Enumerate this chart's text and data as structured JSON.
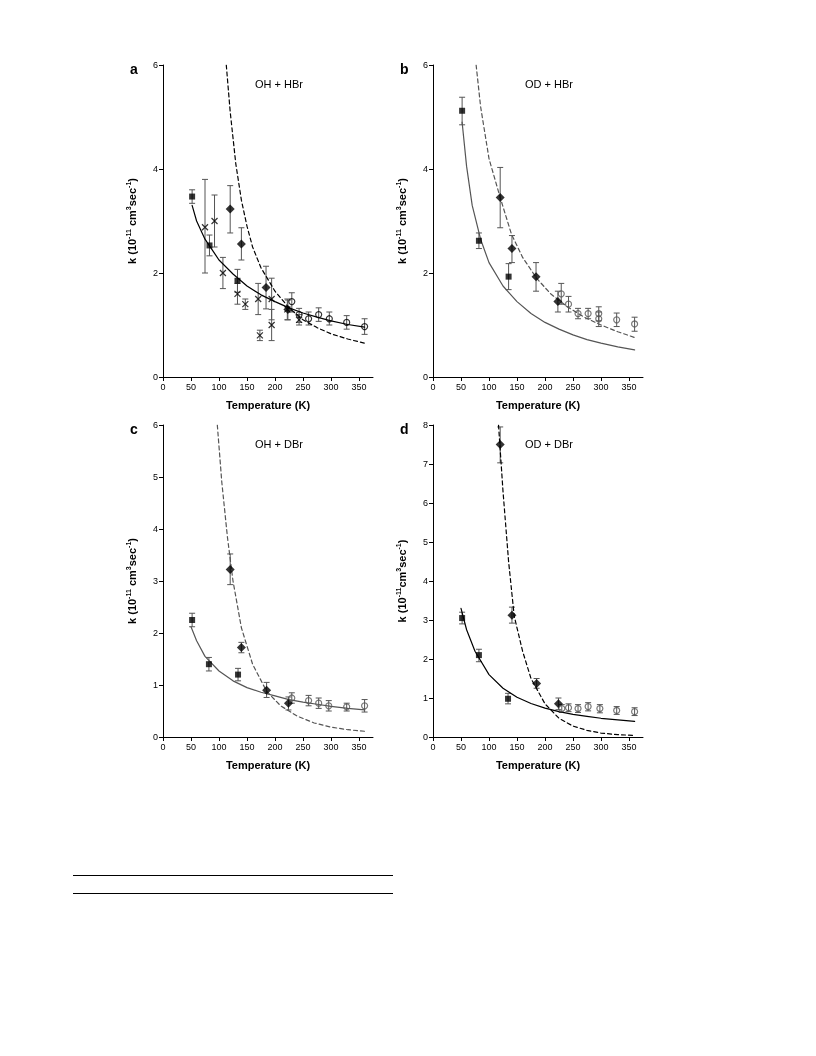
{
  "chart_data": [
    {
      "type": "scatter",
      "title": "a",
      "subtitle": "OH + HBr",
      "xlabel": "Temperature (K)",
      "ylabel": "k (10$^{-11}$ cm$^{3}$sec$^{-1}$)",
      "xlim": [
        0,
        375
      ],
      "xticks": [
        0,
        50,
        100,
        150,
        200,
        250,
        300,
        350
      ],
      "ylim": [
        0,
        6
      ],
      "yticks": [
        0,
        2,
        4,
        6
      ],
      "series": [
        {
          "type": "line",
          "marker": "none",
          "line_style": "solid",
          "color": "#000000",
          "x": [
            52,
            60,
            75,
            100,
            125,
            150,
            175,
            200,
            225,
            250,
            275,
            300,
            330,
            360
          ],
          "values": [
            3.3,
            3.0,
            2.65,
            2.25,
            1.98,
            1.75,
            1.58,
            1.45,
            1.33,
            1.23,
            1.15,
            1.08,
            1.01,
            0.96
          ]
        },
        {
          "type": "line",
          "marker": "none",
          "line_style": "dashed",
          "color": "#000000",
          "x": [
            113,
            120,
            130,
            140,
            150,
            160,
            175,
            200,
            225,
            250,
            275,
            300,
            330,
            360
          ],
          "values": [
            6.0,
            5.1,
            4.1,
            3.4,
            2.9,
            2.5,
            2.1,
            1.65,
            1.33,
            1.1,
            0.95,
            0.83,
            0.73,
            0.65
          ]
        },
        {
          "marker": "cross",
          "color": "#000000",
          "x": [
            75,
            92,
            107,
            133,
            147,
            170,
            173,
            194,
            194,
            222,
            243
          ],
          "values": [
            2.88,
            3.0,
            2.0,
            1.6,
            1.4,
            1.5,
            0.8,
            1.0,
            1.5,
            1.3,
            1.1
          ],
          "errors": [
            [
              2.0,
              3.8
            ],
            [
              2.5,
              3.5
            ],
            [
              1.7,
              2.3
            ],
            [
              1.4,
              1.8
            ],
            [
              1.3,
              1.5
            ],
            [
              1.2,
              1.8
            ],
            [
              0.7,
              0.9
            ],
            [
              0.7,
              1.3
            ],
            [
              1.1,
              1.9
            ],
            [
              1.1,
              1.5
            ],
            [
              1.0,
              1.2
            ]
          ]
        },
        {
          "marker": "square",
          "color": "#000000",
          "x": [
            52,
            83,
            133
          ],
          "values": [
            3.47,
            2.53,
            1.85
          ],
          "errors": [
            [
              3.34,
              3.6
            ],
            [
              2.33,
              2.73
            ],
            [
              1.63,
              2.07
            ]
          ]
        },
        {
          "marker": "diamond",
          "color": "#000000",
          "x": [
            120,
            140,
            184,
            223
          ],
          "values": [
            3.23,
            2.56,
            1.72,
            1.3
          ],
          "errors": [
            [
              2.77,
              3.68
            ],
            [
              2.25,
              2.87
            ],
            [
              1.31,
              2.13
            ],
            [
              1.1,
              1.48
            ]
          ]
        },
        {
          "marker": "circle",
          "color": "#000000",
          "x": [
            230,
            243,
            260,
            278,
            297,
            328,
            360
          ],
          "values": [
            1.45,
            1.2,
            1.12,
            1.2,
            1.12,
            1.05,
            0.97
          ],
          "errors": [
            [
              1.25,
              1.62
            ],
            [
              1.05,
              1.32
            ],
            [
              1.0,
              1.25
            ],
            [
              1.07,
              1.33
            ],
            [
              1.0,
              1.25
            ],
            [
              0.92,
              1.18
            ],
            [
              0.82,
              1.12
            ]
          ]
        }
      ]
    },
    {
      "type": "scatter",
      "title": "b",
      "subtitle": "OD + HBr",
      "xlabel": "Temperature (K)",
      "ylabel": "k (10$^{-11}$ cm$^{3}$sec$^{-1}$)",
      "xlim": [
        0,
        375
      ],
      "xticks": [
        0,
        50,
        100,
        150,
        200,
        250,
        300,
        350
      ],
      "ylim": [
        0,
        6
      ],
      "yticks": [
        0,
        2,
        4,
        6
      ],
      "series": [
        {
          "type": "line",
          "marker": "none",
          "line_style": "solid",
          "color": "#555555",
          "x": [
            52,
            60,
            70,
            85,
            100,
            125,
            150,
            175,
            200,
            225,
            250,
            275,
            300,
            330,
            360
          ],
          "values": [
            4.9,
            4.05,
            3.3,
            2.65,
            2.2,
            1.75,
            1.45,
            1.22,
            1.05,
            0.92,
            0.81,
            0.72,
            0.65,
            0.58,
            0.52
          ]
        },
        {
          "type": "line",
          "marker": "none",
          "line_style": "dashed",
          "color": "#555555",
          "x": [
            77,
            85,
            100,
            120,
            140,
            160,
            185,
            210,
            240,
            270,
            300,
            330,
            360
          ],
          "values": [
            6.0,
            5.2,
            4.2,
            3.45,
            2.75,
            2.3,
            1.9,
            1.6,
            1.35,
            1.15,
            1.0,
            0.87,
            0.76
          ]
        },
        {
          "marker": "square",
          "color": "#000000",
          "x": [
            52,
            82,
            135
          ],
          "values": [
            5.12,
            2.62,
            1.93
          ],
          "errors": [
            [
              4.85,
              5.38
            ],
            [
              2.47,
              2.77
            ],
            [
              1.68,
              2.18
            ]
          ]
        },
        {
          "marker": "diamond",
          "color": "#000000",
          "x": [
            120,
            141,
            184,
            223
          ],
          "values": [
            3.45,
            2.47,
            1.93,
            1.45
          ],
          "errors": [
            [
              2.87,
              4.03
            ],
            [
              2.2,
              2.72
            ],
            [
              1.65,
              2.2
            ],
            [
              1.25,
              1.65
            ]
          ]
        },
        {
          "marker": "circle",
          "color": "#555555",
          "x": [
            229,
            242,
            259,
            277,
            296,
            296,
            328,
            360
          ],
          "values": [
            1.6,
            1.4,
            1.22,
            1.22,
            1.22,
            1.12,
            1.1,
            1.02
          ],
          "errors": [
            [
              1.4,
              1.8
            ],
            [
              1.25,
              1.55
            ],
            [
              1.12,
              1.32
            ],
            [
              1.12,
              1.32
            ],
            [
              1.08,
              1.35
            ],
            [
              0.97,
              1.25
            ],
            [
              0.97,
              1.23
            ],
            [
              0.88,
              1.15
            ]
          ]
        }
      ]
    },
    {
      "type": "scatter",
      "title": "c",
      "subtitle": "OH + DBr",
      "xlabel": "Temperature (K)",
      "ylabel": "k (10$^{-11}$ cm$^{3}$sec$^{-1}$)",
      "xlim": [
        0,
        375
      ],
      "xticks": [
        0,
        50,
        100,
        150,
        200,
        250,
        300,
        350
      ],
      "ylim": [
        0,
        6
      ],
      "yticks": [
        0,
        1,
        2,
        3,
        4,
        5,
        6
      ],
      "series": [
        {
          "type": "line",
          "marker": "none",
          "line_style": "solid",
          "color": "#555555",
          "x": [
            50,
            60,
            75,
            100,
            125,
            150,
            175,
            200,
            225,
            250,
            275,
            300,
            330,
            360
          ],
          "values": [
            2.12,
            1.85,
            1.55,
            1.27,
            1.08,
            0.95,
            0.86,
            0.79,
            0.72,
            0.67,
            0.63,
            0.59,
            0.55,
            0.52
          ]
        },
        {
          "type": "line",
          "marker": "none",
          "line_style": "dashed",
          "color": "#555555",
          "x": [
            97,
            105,
            115,
            125,
            140,
            160,
            185,
            210,
            240,
            270,
            300,
            330,
            360
          ],
          "values": [
            6.0,
            4.9,
            3.85,
            3.0,
            2.1,
            1.4,
            0.88,
            0.6,
            0.4,
            0.27,
            0.19,
            0.14,
            0.11
          ]
        },
        {
          "marker": "square",
          "color": "#000000",
          "x": [
            52,
            82,
            134
          ],
          "values": [
            2.25,
            1.4,
            1.2
          ],
          "errors": [
            [
              2.12,
              2.38
            ],
            [
              1.27,
              1.53
            ],
            [
              1.08,
              1.32
            ]
          ]
        },
        {
          "marker": "diamond",
          "color": "#000000",
          "x": [
            120,
            140,
            185,
            224
          ],
          "values": [
            3.22,
            1.72,
            0.9,
            0.65
          ],
          "errors": [
            [
              2.93,
              3.52
            ],
            [
              1.62,
              1.82
            ],
            [
              0.76,
              1.05
            ],
            [
              0.52,
              0.77
            ]
          ]
        },
        {
          "marker": "circle",
          "color": "#555555",
          "x": [
            230,
            260,
            278,
            296,
            328,
            360
          ],
          "values": [
            0.75,
            0.7,
            0.65,
            0.6,
            0.58,
            0.6
          ],
          "errors": [
            [
              0.65,
              0.85
            ],
            [
              0.6,
              0.8
            ],
            [
              0.55,
              0.75
            ],
            [
              0.5,
              0.7
            ],
            [
              0.5,
              0.65
            ],
            [
              0.48,
              0.72
            ]
          ]
        }
      ]
    },
    {
      "type": "scatter",
      "title": "d",
      "subtitle": "OD + DBr",
      "xlabel": "Temperature (K)",
      "ylabel": "k (10$^{-11}$cm$^{3}$sec$^{-1}$)",
      "xlim": [
        0,
        375
      ],
      "xticks": [
        0,
        50,
        100,
        150,
        200,
        250,
        300,
        350
      ],
      "ylim": [
        0,
        8
      ],
      "yticks": [
        0,
        1,
        2,
        3,
        4,
        5,
        6,
        7,
        8
      ],
      "series": [
        {
          "type": "line",
          "marker": "none",
          "line_style": "solid",
          "color": "#000000",
          "x": [
            50,
            60,
            75,
            100,
            125,
            150,
            175,
            200,
            225,
            250,
            275,
            300,
            330,
            360
          ],
          "values": [
            3.3,
            2.75,
            2.2,
            1.6,
            1.25,
            1.02,
            0.86,
            0.74,
            0.65,
            0.58,
            0.53,
            0.48,
            0.44,
            0.4
          ]
        },
        {
          "type": "line",
          "marker": "none",
          "line_style": "dashed",
          "color": "#000000",
          "x": [
            117,
            125,
            135,
            145,
            160,
            175,
            200,
            225,
            250,
            275,
            300,
            330,
            360
          ],
          "values": [
            8.0,
            6.3,
            4.5,
            3.1,
            2.2,
            1.5,
            0.85,
            0.48,
            0.28,
            0.17,
            0.1,
            0.06,
            0.04
          ]
        },
        {
          "marker": "square",
          "color": "#000000",
          "x": [
            52,
            82,
            134
          ],
          "values": [
            3.05,
            2.1,
            0.98
          ],
          "errors": [
            [
              2.9,
              3.2
            ],
            [
              1.93,
              2.25
            ],
            [
              0.85,
              1.12
            ]
          ]
        },
        {
          "marker": "diamond",
          "color": "#000000",
          "x": [
            120,
            141,
            185,
            224
          ],
          "values": [
            7.5,
            3.12,
            1.37,
            0.85
          ],
          "errors": [
            [
              7.03,
              7.95
            ],
            [
              2.92,
              3.33
            ],
            [
              1.25,
              1.5
            ],
            [
              0.7,
              1.0
            ]
          ]
        },
        {
          "marker": "circle",
          "color": "#555555",
          "x": [
            230,
            242,
            259,
            277,
            298,
            328,
            360
          ],
          "values": [
            0.73,
            0.75,
            0.73,
            0.78,
            0.73,
            0.68,
            0.65
          ],
          "errors": [
            [
              0.63,
              0.83
            ],
            [
              0.65,
              0.85
            ],
            [
              0.63,
              0.83
            ],
            [
              0.67,
              0.88
            ],
            [
              0.62,
              0.83
            ],
            [
              0.58,
              0.78
            ],
            [
              0.55,
              0.75
            ]
          ]
        }
      ]
    }
  ]
}
